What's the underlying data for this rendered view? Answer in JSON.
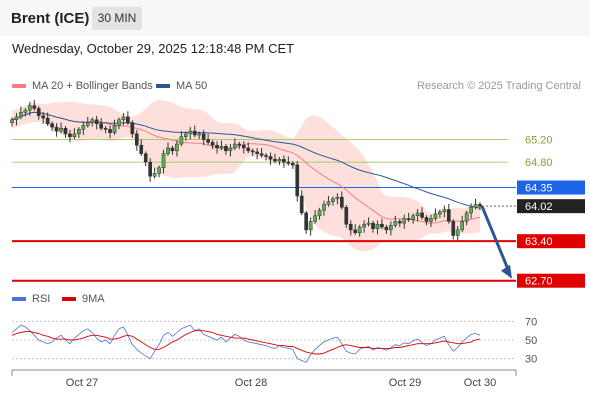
{
  "header": {
    "instrument": "Brent (ICE)",
    "timeframe": "30 MIN"
  },
  "datetime": "Wednesday, October 29, 2025 12:18:48 PM CET",
  "legend": {
    "ma20": {
      "label": "MA 20 + Bollinger Bands",
      "color": "#f08080"
    },
    "ma50": {
      "label": "MA 50",
      "color": "#2f5597"
    }
  },
  "credit": "Research © 2025 Trading Central",
  "rsi_legend": {
    "rsi": {
      "label": "RSI",
      "color": "#4a74d6"
    },
    "ma": {
      "label": "9MA",
      "color": "#e00000"
    }
  },
  "chart_data": {
    "type": "candlestick",
    "x_ticks": [
      "Oct 27",
      "Oct 28",
      "Oct 29",
      "Oct 30"
    ],
    "price_range": [
      62.5,
      65.9
    ],
    "levels": [
      {
        "value": 65.2,
        "label": "65.20",
        "kind": "minor",
        "color": "#8cc34a"
      },
      {
        "value": 64.8,
        "label": "64.80",
        "kind": "minor",
        "color": "#8cc34a"
      },
      {
        "value": 64.35,
        "label": "64.35",
        "kind": "pivot",
        "color": "#1e64e6"
      },
      {
        "value": 64.02,
        "label": "64.02",
        "kind": "last",
        "color": "#222222"
      },
      {
        "value": 63.4,
        "label": "63.40",
        "kind": "support",
        "color": "#e00000"
      },
      {
        "value": 62.7,
        "label": "62.70",
        "kind": "support",
        "color": "#e00000"
      }
    ],
    "arrow": {
      "from_price": 64.02,
      "to_price": 62.7,
      "color": "#2f5597"
    },
    "rsi_ticks": [
      70,
      50,
      30
    ],
    "rsi_range": [
      20,
      80
    ],
    "closes": [
      65.55,
      65.6,
      65.68,
      65.72,
      65.8,
      65.75,
      65.62,
      65.58,
      65.48,
      65.42,
      65.35,
      65.4,
      65.3,
      65.25,
      65.3,
      65.38,
      65.45,
      65.5,
      65.55,
      65.48,
      65.4,
      65.38,
      65.32,
      65.45,
      65.55,
      65.6,
      65.5,
      65.3,
      65.1,
      64.95,
      64.8,
      64.55,
      64.6,
      64.7,
      64.95,
      65.05,
      65.0,
      65.12,
      65.25,
      65.3,
      65.35,
      65.28,
      65.3,
      65.2,
      65.15,
      65.1,
      65.05,
      65.08,
      65.0,
      65.05,
      65.12,
      65.1,
      65.05,
      65.0,
      64.98,
      64.95,
      64.92,
      64.9,
      64.85,
      64.82,
      64.85,
      64.8,
      64.78,
      64.75,
      64.2,
      63.9,
      63.6,
      63.75,
      63.85,
      63.95,
      64.05,
      64.1,
      64.15,
      64.18,
      64.0,
      63.7,
      63.6,
      63.55,
      63.65,
      63.7,
      63.72,
      63.62,
      63.7,
      63.65,
      63.6,
      63.68,
      63.75,
      63.72,
      63.8,
      63.78,
      63.85,
      63.9,
      63.82,
      63.75,
      63.8,
      63.88,
      63.92,
      63.96,
      63.75,
      63.5,
      63.6,
      63.75,
      63.9,
      64.0,
      64.05,
      64.02
    ],
    "rsi": [
      58,
      62,
      66,
      64,
      60,
      55,
      50,
      48,
      46,
      48,
      52,
      55,
      50,
      46,
      52,
      56,
      60,
      62,
      58,
      52,
      48,
      50,
      46,
      55,
      62,
      64,
      55,
      45,
      40,
      36,
      33,
      30,
      38,
      45,
      55,
      58,
      54,
      58,
      62,
      64,
      66,
      60,
      62,
      56,
      54,
      52,
      50,
      53,
      48,
      52,
      56,
      54,
      50,
      48,
      47,
      46,
      45,
      44,
      42,
      41,
      44,
      42,
      41,
      40,
      30,
      28,
      26,
      34,
      40,
      44,
      48,
      50,
      52,
      53,
      46,
      38,
      36,
      35,
      40,
      42,
      43,
      39,
      42,
      41,
      39,
      42,
      45,
      44,
      47,
      46,
      49,
      51,
      47,
      44,
      46,
      50,
      52,
      54,
      45,
      38,
      42,
      48,
      52,
      56,
      57,
      55
    ],
    "rsi_ma": [
      55,
      57,
      58,
      59,
      59,
      58,
      57,
      55,
      54,
      52,
      51,
      51,
      51,
      50,
      50,
      51,
      52,
      54,
      55,
      55,
      54,
      53,
      51,
      51,
      52,
      54,
      55,
      54,
      51,
      48,
      45,
      42,
      40,
      40,
      42,
      45,
      48,
      50,
      53,
      56,
      58,
      60,
      60,
      60,
      59,
      58,
      56,
      55,
      54,
      53,
      52,
      52,
      52,
      51,
      50,
      49,
      48,
      47,
      46,
      45,
      44,
      44,
      43,
      43,
      41,
      39,
      37,
      36,
      35,
      35,
      36,
      38,
      40,
      42,
      44,
      45,
      44,
      43,
      42,
      42,
      42,
      41,
      41,
      41,
      41,
      41,
      42,
      42,
      43,
      44,
      45,
      46,
      46,
      46,
      46,
      47,
      48,
      49,
      48,
      47,
      46,
      46,
      47,
      48,
      50,
      51
    ]
  }
}
